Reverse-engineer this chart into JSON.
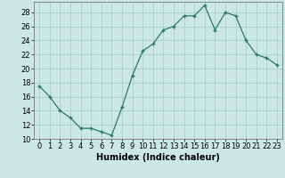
{
  "x": [
    0,
    1,
    2,
    3,
    4,
    5,
    6,
    7,
    8,
    9,
    10,
    11,
    12,
    13,
    14,
    15,
    16,
    17,
    18,
    19,
    20,
    21,
    22,
    23
  ],
  "y": [
    17.5,
    16.0,
    14.0,
    13.0,
    11.5,
    11.5,
    11.0,
    10.5,
    14.5,
    19.0,
    22.5,
    23.5,
    25.5,
    26.0,
    27.5,
    27.5,
    29.0,
    25.5,
    28.0,
    27.5,
    24.0,
    22.0,
    21.5,
    20.5
  ],
  "line_color": "#2a7a65",
  "marker": "+",
  "bg_color": "#cce8e4",
  "grid_color": "#aacfcc",
  "xlabel": "Humidex (Indice chaleur)",
  "xlim": [
    -0.5,
    23.5
  ],
  "ylim": [
    10,
    29.5
  ],
  "yticks": [
    10,
    12,
    14,
    16,
    18,
    20,
    22,
    24,
    26,
    28
  ],
  "xticks": [
    0,
    1,
    2,
    3,
    4,
    5,
    6,
    7,
    8,
    9,
    10,
    11,
    12,
    13,
    14,
    15,
    16,
    17,
    18,
    19,
    20,
    21,
    22,
    23
  ],
  "label_fontsize": 7,
  "tick_fontsize": 6
}
